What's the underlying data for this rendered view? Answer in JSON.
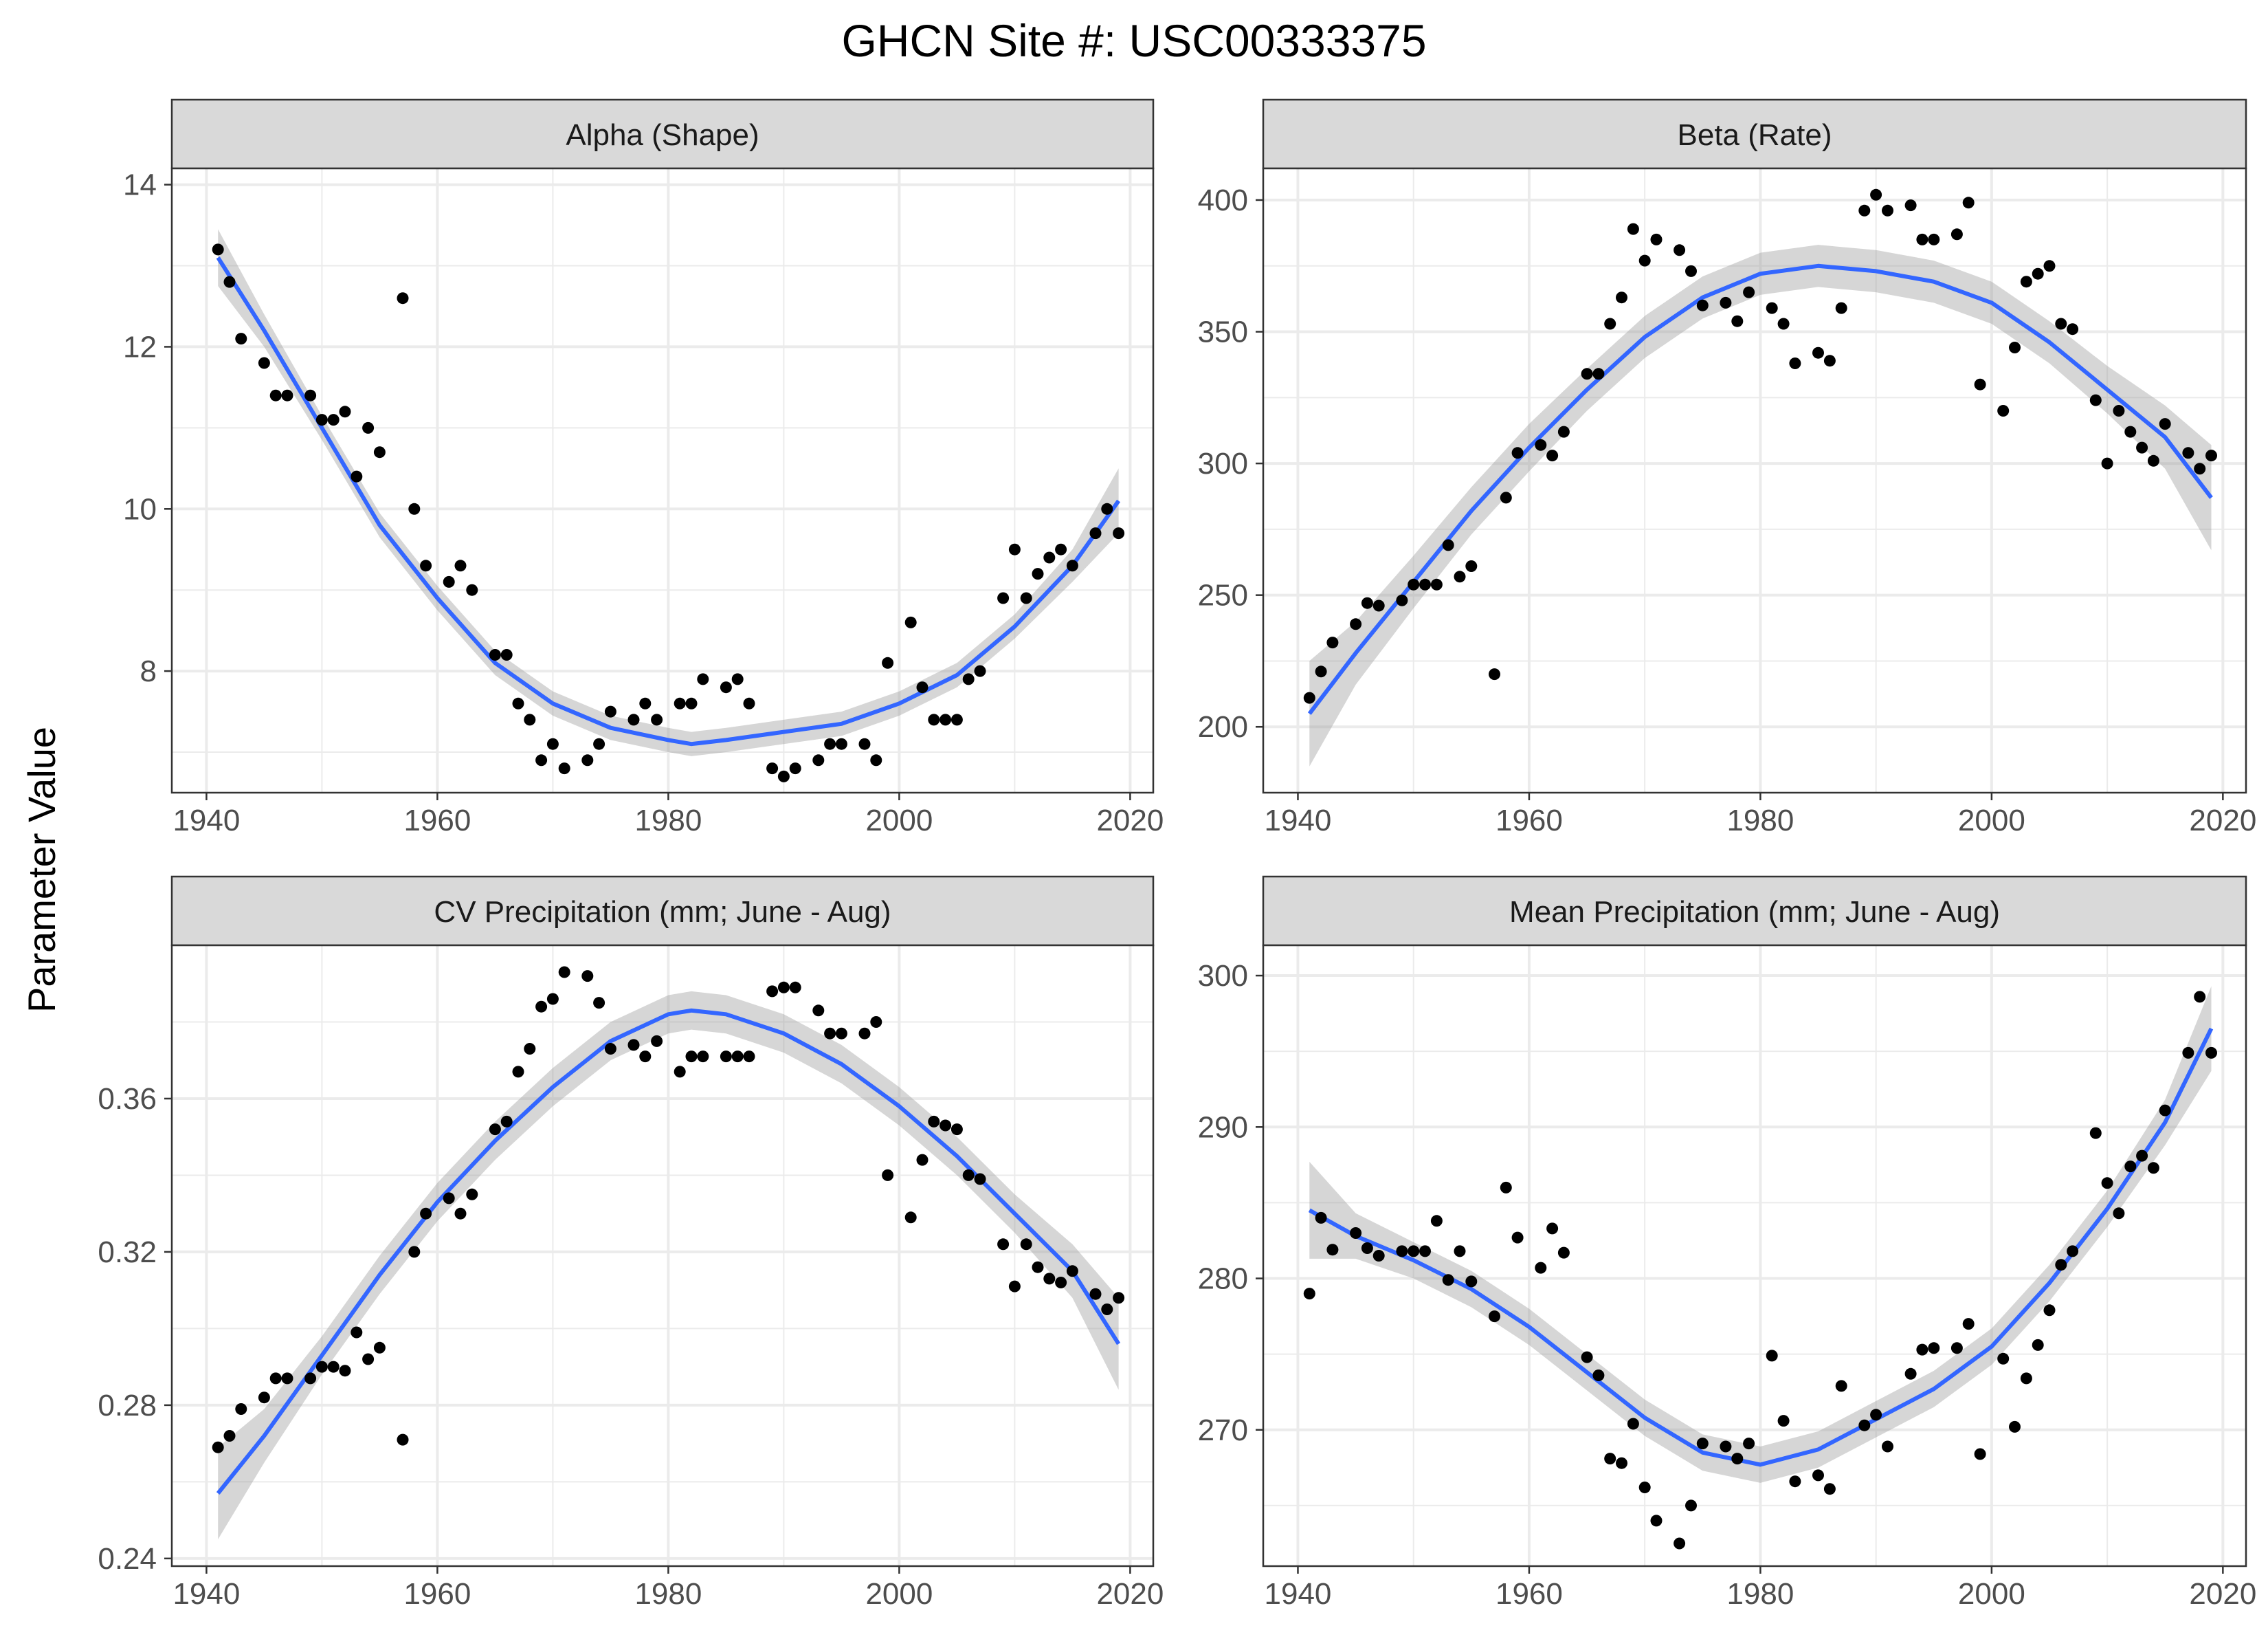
{
  "title": "GHCN Site #: USC00333375",
  "ylabel": "Parameter Value",
  "colors": {
    "points": "#000000",
    "smooth": "#3366FF",
    "ribbon": "#999999",
    "strip": "#D9D9D9",
    "grid": "#EBEBEB"
  },
  "chart_data": [
    {
      "type": "scatter",
      "title": "Alpha (Shape)",
      "x_ticks": [
        1940,
        1960,
        1980,
        2000,
        2020
      ],
      "y_ticks": [
        8,
        10,
        12,
        14
      ],
      "xlim": [
        1937,
        2022
      ],
      "ylim": [
        6.5,
        14.2
      ],
      "points": [
        [
          1941,
          13.2
        ],
        [
          1942,
          12.8
        ],
        [
          1943,
          12.1
        ],
        [
          1945,
          11.8
        ],
        [
          1946,
          11.4
        ],
        [
          1947,
          11.4
        ],
        [
          1949,
          11.4
        ],
        [
          1950,
          11.1
        ],
        [
          1951,
          11.1
        ],
        [
          1952,
          11.2
        ],
        [
          1953,
          10.4
        ],
        [
          1954,
          11
        ],
        [
          1955,
          10.7
        ],
        [
          1957,
          12.6
        ],
        [
          1958,
          10
        ],
        [
          1959,
          9.3
        ],
        [
          1961,
          9.1
        ],
        [
          1962,
          9.3
        ],
        [
          1963,
          9
        ],
        [
          1965,
          8.2
        ],
        [
          1966,
          8.2
        ],
        [
          1967,
          7.6
        ],
        [
          1968,
          7.4
        ],
        [
          1969,
          6.9
        ],
        [
          1970,
          7.1
        ],
        [
          1971,
          6.8
        ],
        [
          1973,
          6.9
        ],
        [
          1974,
          7.1
        ],
        [
          1975,
          7.5
        ],
        [
          1977,
          7.4
        ],
        [
          1978,
          7.6
        ],
        [
          1979,
          7.4
        ],
        [
          1981,
          7.6
        ],
        [
          1982,
          7.6
        ],
        [
          1983,
          7.9
        ],
        [
          1985,
          7.8
        ],
        [
          1986,
          7.9
        ],
        [
          1987,
          7.6
        ],
        [
          1989,
          6.8
        ],
        [
          1990,
          6.7
        ],
        [
          1991,
          6.8
        ],
        [
          1993,
          6.9
        ],
        [
          1994,
          7.1
        ],
        [
          1995,
          7.1
        ],
        [
          1997,
          7.1
        ],
        [
          1998,
          6.9
        ],
        [
          1999,
          8.1
        ],
        [
          2001,
          8.6
        ],
        [
          2002,
          7.8
        ],
        [
          2003,
          7.4
        ],
        [
          2004,
          7.4
        ],
        [
          2005,
          7.4
        ],
        [
          2006,
          7.9
        ],
        [
          2007,
          8
        ],
        [
          2009,
          8.9
        ],
        [
          2010,
          9.5
        ],
        [
          2011,
          8.9
        ],
        [
          2012,
          9.2
        ],
        [
          2013,
          9.4
        ],
        [
          2014,
          9.5
        ],
        [
          2015,
          9.3
        ],
        [
          2017,
          9.7
        ],
        [
          2018,
          10
        ],
        [
          2019,
          9.7
        ]
      ],
      "smooth": [
        [
          1941,
          13.1,
          0.35
        ],
        [
          1945,
          12.2,
          0.2
        ],
        [
          1950,
          11,
          0.15
        ],
        [
          1955,
          9.8,
          0.15
        ],
        [
          1960,
          8.9,
          0.15
        ],
        [
          1965,
          8.1,
          0.15
        ],
        [
          1970,
          7.6,
          0.15
        ],
        [
          1975,
          7.3,
          0.15
        ],
        [
          1980,
          7.15,
          0.15
        ],
        [
          1982,
          7.1,
          0.15
        ],
        [
          1985,
          7.15,
          0.15
        ],
        [
          1990,
          7.25,
          0.15
        ],
        [
          1995,
          7.35,
          0.15
        ],
        [
          2000,
          7.6,
          0.15
        ],
        [
          2005,
          7.95,
          0.15
        ],
        [
          2010,
          8.55,
          0.15
        ],
        [
          2015,
          9.3,
          0.2
        ],
        [
          2019,
          10.1,
          0.4
        ]
      ]
    },
    {
      "type": "scatter",
      "title": "Beta (Rate)",
      "x_ticks": [
        1940,
        1960,
        1980,
        2000,
        2020
      ],
      "y_ticks": [
        200,
        250,
        300,
        350,
        400
      ],
      "xlim": [
        1937,
        2022
      ],
      "ylim": [
        175,
        412
      ],
      "points": [
        [
          1941,
          211
        ],
        [
          1942,
          221
        ],
        [
          1943,
          232
        ],
        [
          1945,
          239
        ],
        [
          1946,
          247
        ],
        [
          1947,
          246
        ],
        [
          1949,
          248
        ],
        [
          1950,
          254
        ],
        [
          1951,
          254
        ],
        [
          1952,
          254
        ],
        [
          1953,
          269
        ],
        [
          1954,
          257
        ],
        [
          1955,
          261
        ],
        [
          1957,
          220
        ],
        [
          1958,
          287
        ],
        [
          1959,
          304
        ],
        [
          1961,
          307
        ],
        [
          1962,
          303
        ],
        [
          1963,
          312
        ],
        [
          1965,
          334
        ],
        [
          1966,
          334
        ],
        [
          1967,
          353
        ],
        [
          1968,
          363
        ],
        [
          1969,
          389
        ],
        [
          1970,
          377
        ],
        [
          1971,
          385
        ],
        [
          1973,
          381
        ],
        [
          1974,
          373
        ],
        [
          1975,
          360
        ],
        [
          1977,
          361
        ],
        [
          1978,
          354
        ],
        [
          1979,
          365
        ],
        [
          1981,
          359
        ],
        [
          1982,
          353
        ],
        [
          1983,
          338
        ],
        [
          1985,
          342
        ],
        [
          1986,
          339
        ],
        [
          1987,
          359
        ],
        [
          1989,
          396
        ],
        [
          1990,
          402
        ],
        [
          1991,
          396
        ],
        [
          1993,
          398
        ],
        [
          1994,
          385
        ],
        [
          1995,
          385
        ],
        [
          1997,
          387
        ],
        [
          1998,
          399
        ],
        [
          1999,
          330
        ],
        [
          2001,
          320
        ],
        [
          2002,
          344
        ],
        [
          2003,
          369
        ],
        [
          2004,
          372
        ],
        [
          2005,
          375
        ],
        [
          2006,
          353
        ],
        [
          2007,
          351
        ],
        [
          2009,
          324
        ],
        [
          2010,
          300
        ],
        [
          2011,
          320
        ],
        [
          2012,
          312
        ],
        [
          2013,
          306
        ],
        [
          2014,
          301
        ],
        [
          2015,
          315
        ],
        [
          2017,
          304
        ],
        [
          2018,
          298
        ],
        [
          2019,
          303
        ]
      ],
      "smooth": [
        [
          1941,
          205,
          20
        ],
        [
          1945,
          228,
          12
        ],
        [
          1950,
          255,
          10
        ],
        [
          1955,
          282,
          9
        ],
        [
          1960,
          306,
          9
        ],
        [
          1965,
          328,
          8
        ],
        [
          1970,
          348,
          8
        ],
        [
          1975,
          363,
          8
        ],
        [
          1980,
          372,
          8
        ],
        [
          1985,
          375,
          8
        ],
        [
          1990,
          373,
          8
        ],
        [
          1995,
          369,
          8
        ],
        [
          2000,
          361,
          8
        ],
        [
          2005,
          346,
          8
        ],
        [
          2010,
          328,
          9
        ],
        [
          2015,
          310,
          12
        ],
        [
          2019,
          287,
          20
        ]
      ]
    },
    {
      "type": "scatter",
      "title": "CV Precipitation (mm; June - Aug)",
      "x_ticks": [
        1940,
        1960,
        1980,
        2000,
        2020
      ],
      "y_ticks": [
        0.24,
        0.28,
        0.32,
        0.36
      ],
      "xlim": [
        1937,
        2022
      ],
      "ylim": [
        0.238,
        0.4
      ],
      "points": [
        [
          1941,
          0.269
        ],
        [
          1942,
          0.272
        ],
        [
          1943,
          0.279
        ],
        [
          1945,
          0.282
        ],
        [
          1946,
          0.287
        ],
        [
          1947,
          0.287
        ],
        [
          1949,
          0.287
        ],
        [
          1950,
          0.29
        ],
        [
          1951,
          0.29
        ],
        [
          1952,
          0.289
        ],
        [
          1953,
          0.299
        ],
        [
          1954,
          0.292
        ],
        [
          1955,
          0.295
        ],
        [
          1957,
          0.271
        ],
        [
          1958,
          0.32
        ],
        [
          1959,
          0.33
        ],
        [
          1961,
          0.334
        ],
        [
          1962,
          0.33
        ],
        [
          1963,
          0.335
        ],
        [
          1965,
          0.352
        ],
        [
          1966,
          0.354
        ],
        [
          1967,
          0.367
        ],
        [
          1968,
          0.373
        ],
        [
          1969,
          0.384
        ],
        [
          1970,
          0.386
        ],
        [
          1971,
          0.393
        ],
        [
          1973,
          0.392
        ],
        [
          1974,
          0.385
        ],
        [
          1975,
          0.373
        ],
        [
          1977,
          0.374
        ],
        [
          1978,
          0.371
        ],
        [
          1979,
          0.375
        ],
        [
          1981,
          0.367
        ],
        [
          1982,
          0.371
        ],
        [
          1983,
          0.371
        ],
        [
          1985,
          0.371
        ],
        [
          1986,
          0.371
        ],
        [
          1987,
          0.371
        ],
        [
          1989,
          0.388
        ],
        [
          1990,
          0.389
        ],
        [
          1991,
          0.389
        ],
        [
          1993,
          0.383
        ],
        [
          1994,
          0.377
        ],
        [
          1995,
          0.377
        ],
        [
          1997,
          0.377
        ],
        [
          1998,
          0.38
        ],
        [
          1999,
          0.34
        ],
        [
          2001,
          0.329
        ],
        [
          2002,
          0.344
        ],
        [
          2003,
          0.354
        ],
        [
          2004,
          0.353
        ],
        [
          2005,
          0.352
        ],
        [
          2006,
          0.34
        ],
        [
          2007,
          0.339
        ],
        [
          2009,
          0.322
        ],
        [
          2010,
          0.311
        ],
        [
          2011,
          0.322
        ],
        [
          2012,
          0.316
        ],
        [
          2013,
          0.313
        ],
        [
          2014,
          0.312
        ],
        [
          2015,
          0.315
        ],
        [
          2017,
          0.309
        ],
        [
          2018,
          0.305
        ],
        [
          2019,
          0.308
        ]
      ],
      "smooth": [
        [
          1941,
          0.257,
          0.012
        ],
        [
          1945,
          0.272,
          0.007
        ],
        [
          1950,
          0.293,
          0.005
        ],
        [
          1955,
          0.314,
          0.005
        ],
        [
          1960,
          0.333,
          0.005
        ],
        [
          1965,
          0.349,
          0.005
        ],
        [
          1970,
          0.363,
          0.005
        ],
        [
          1975,
          0.375,
          0.005
        ],
        [
          1980,
          0.382,
          0.005
        ],
        [
          1982,
          0.383,
          0.005
        ],
        [
          1985,
          0.382,
          0.005
        ],
        [
          1990,
          0.377,
          0.005
        ],
        [
          1995,
          0.369,
          0.005
        ],
        [
          2000,
          0.358,
          0.005
        ],
        [
          2005,
          0.345,
          0.005
        ],
        [
          2010,
          0.33,
          0.005
        ],
        [
          2015,
          0.315,
          0.007
        ],
        [
          2019,
          0.296,
          0.012
        ]
      ]
    },
    {
      "type": "scatter",
      "title": "Mean Precipitation (mm; June - Aug)",
      "x_ticks": [
        1940,
        1960,
        1980,
        2000,
        2020
      ],
      "y_ticks": [
        270,
        280,
        290,
        300
      ],
      "xlim": [
        1937,
        2022
      ],
      "ylim": [
        261,
        302
      ],
      "points": [
        [
          1941,
          279
        ],
        [
          1942,
          284
        ],
        [
          1943,
          281.9
        ],
        [
          1945,
          283
        ],
        [
          1946,
          282
        ],
        [
          1947,
          281.5
        ],
        [
          1949,
          281.8
        ],
        [
          1950,
          281.8
        ],
        [
          1951,
          281.8
        ],
        [
          1952,
          283.8
        ],
        [
          1953,
          279.9
        ],
        [
          1954,
          281.8
        ],
        [
          1955,
          279.8
        ],
        [
          1957,
          277.5
        ],
        [
          1958,
          286
        ],
        [
          1959,
          282.7
        ],
        [
          1961,
          280.7
        ],
        [
          1962,
          283.3
        ],
        [
          1963,
          281.7
        ],
        [
          1965,
          274.8
        ],
        [
          1966,
          273.6
        ],
        [
          1967,
          268.1
        ],
        [
          1968,
          267.8
        ],
        [
          1969,
          270.4
        ],
        [
          1970,
          266.2
        ],
        [
          1971,
          264
        ],
        [
          1973,
          262.5
        ],
        [
          1974,
          265
        ],
        [
          1975,
          269.1
        ],
        [
          1977,
          268.9
        ],
        [
          1978,
          268.1
        ],
        [
          1979,
          269.1
        ],
        [
          1981,
          274.9
        ],
        [
          1982,
          270.6
        ],
        [
          1983,
          266.6
        ],
        [
          1985,
          267
        ],
        [
          1986,
          266.1
        ],
        [
          1987,
          272.9
        ],
        [
          1989,
          270.3
        ],
        [
          1990,
          271
        ],
        [
          1991,
          268.9
        ],
        [
          1993,
          273.7
        ],
        [
          1994,
          275.3
        ],
        [
          1995,
          275.4
        ],
        [
          1997,
          275.4
        ],
        [
          1998,
          277
        ],
        [
          1999,
          268.4
        ],
        [
          2001,
          274.7
        ],
        [
          2002,
          270.2
        ],
        [
          2003,
          273.4
        ],
        [
          2004,
          275.6
        ],
        [
          2005,
          277.9
        ],
        [
          2006,
          280.9
        ],
        [
          2007,
          281.8
        ],
        [
          2009,
          289.6
        ],
        [
          2010,
          286.3
        ],
        [
          2011,
          284.3
        ],
        [
          2012,
          287.4
        ],
        [
          2013,
          288.1
        ],
        [
          2014,
          287.3
        ],
        [
          2015,
          291.1
        ],
        [
          2017,
          294.9
        ],
        [
          2018,
          298.6
        ],
        [
          2019,
          294.9
        ]
      ],
      "smooth": [
        [
          1941,
          284.5,
          3.2
        ],
        [
          1945,
          282.8,
          1.5
        ],
        [
          1950,
          281.2,
          1.2
        ],
        [
          1955,
          279.3,
          1.2
        ],
        [
          1960,
          276.8,
          1.2
        ],
        [
          1965,
          273.8,
          1.2
        ],
        [
          1970,
          270.8,
          1.2
        ],
        [
          1975,
          268.5,
          1.2
        ],
        [
          1980,
          267.7,
          1.2
        ],
        [
          1985,
          268.7,
          1.2
        ],
        [
          1990,
          270.7,
          1.2
        ],
        [
          1995,
          272.7,
          1.2
        ],
        [
          2000,
          275.5,
          1.2
        ],
        [
          2005,
          279.7,
          1.2
        ],
        [
          2010,
          284.6,
          1.2
        ],
        [
          2015,
          290.3,
          1.5
        ],
        [
          2019,
          296.5,
          2.8
        ]
      ]
    }
  ]
}
